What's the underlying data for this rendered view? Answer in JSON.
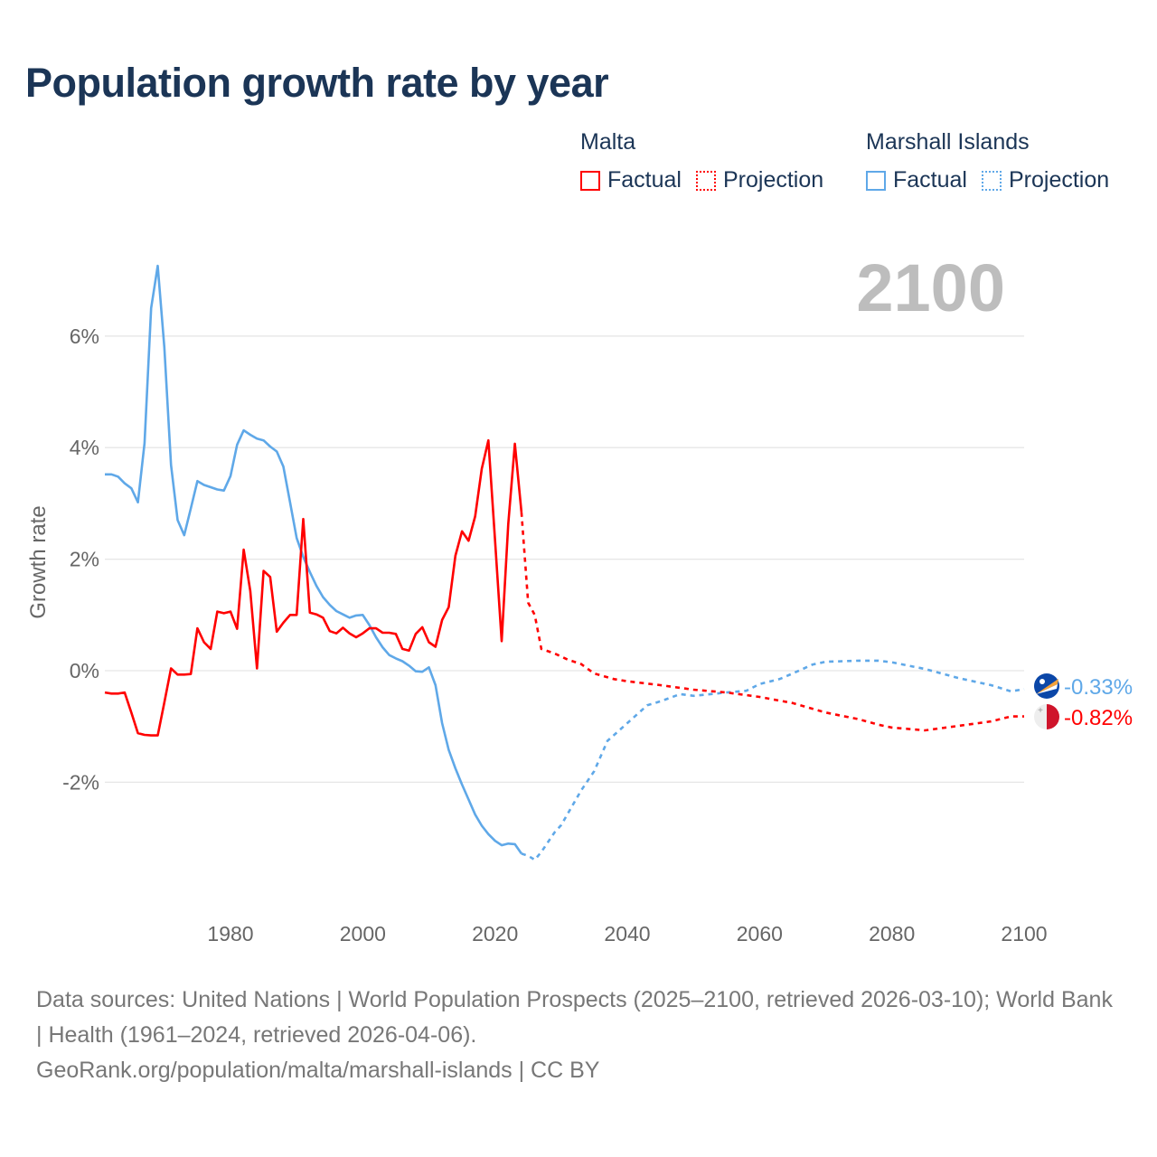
{
  "title": "Population growth rate by year",
  "current_year_label": "2100",
  "legend": {
    "groups": [
      {
        "name": "Malta",
        "factual": "Factual",
        "projection": "Projection",
        "color": "#ff0000"
      },
      {
        "name": "Marshall Islands",
        "factual": "Factual",
        "projection": "Projection",
        "color": "#5fa8e8"
      }
    ]
  },
  "footer": {
    "sources": "Data sources: United Nations | World Population Prospects (2025–2100, retrieved 2026-03-10); World Bank | Health (1961–2024, retrieved 2026-04-06).",
    "credit": "GeoRank.org/population/malta/marshall-islands | CC BY"
  },
  "chart_data": {
    "type": "line",
    "title": "Population growth rate by year",
    "xlabel": "",
    "ylabel": "Growth rate",
    "xlim": [
      1961,
      2100
    ],
    "ylim": [
      -4,
      7.5
    ],
    "x_ticks": [
      "1980",
      "2000",
      "2020",
      "2040",
      "2060",
      "2080",
      "2100"
    ],
    "x_tick_values": [
      1980,
      2000,
      2020,
      2040,
      2060,
      2080,
      2100
    ],
    "y_ticks": [
      "6%",
      "4%",
      "2%",
      "0%",
      "-2%"
    ],
    "y_tick_values": [
      6,
      4,
      2,
      0,
      -2
    ],
    "grid": true,
    "series": [
      {
        "name": "Malta",
        "color": "#ff0000",
        "end_label": "-0.82%",
        "flag": "malta-flag",
        "factual": [
          [
            1961,
            -0.39
          ],
          [
            1962,
            -0.41
          ],
          [
            1963,
            -0.41
          ],
          [
            1964,
            -0.39
          ],
          [
            1965,
            -0.75
          ],
          [
            1966,
            -1.12
          ],
          [
            1967,
            -1.15
          ],
          [
            1968,
            -1.16
          ],
          [
            1969,
            -1.16
          ],
          [
            1970,
            -0.57
          ],
          [
            1971,
            0.04
          ],
          [
            1972,
            -0.07
          ],
          [
            1973,
            -0.07
          ],
          [
            1974,
            -0.06
          ],
          [
            1975,
            0.76
          ],
          [
            1976,
            0.51
          ],
          [
            1977,
            0.39
          ],
          [
            1978,
            1.06
          ],
          [
            1979,
            1.03
          ],
          [
            1980,
            1.06
          ],
          [
            1981,
            0.75
          ],
          [
            1982,
            2.17
          ],
          [
            1983,
            1.43
          ],
          [
            1984,
            0.04
          ],
          [
            1985,
            1.79
          ],
          [
            1986,
            1.68
          ],
          [
            1987,
            0.7
          ],
          [
            1988,
            0.86
          ],
          [
            1989,
            1.0
          ],
          [
            1990,
            1.0
          ],
          [
            1991,
            2.72
          ],
          [
            1992,
            1.04
          ],
          [
            1993,
            1.01
          ],
          [
            1994,
            0.95
          ],
          [
            1995,
            0.71
          ],
          [
            1996,
            0.67
          ],
          [
            1997,
            0.77
          ],
          [
            1998,
            0.67
          ],
          [
            1999,
            0.6
          ],
          [
            2000,
            0.67
          ],
          [
            2001,
            0.76
          ],
          [
            2002,
            0.76
          ],
          [
            2003,
            0.68
          ],
          [
            2004,
            0.68
          ],
          [
            2005,
            0.66
          ],
          [
            2006,
            0.39
          ],
          [
            2007,
            0.36
          ],
          [
            2008,
            0.66
          ],
          [
            2009,
            0.78
          ],
          [
            2010,
            0.51
          ],
          [
            2011,
            0.43
          ],
          [
            2012,
            0.91
          ],
          [
            2013,
            1.14
          ],
          [
            2014,
            2.06
          ],
          [
            2015,
            2.5
          ],
          [
            2016,
            2.33
          ],
          [
            2017,
            2.77
          ],
          [
            2018,
            3.62
          ],
          [
            2019,
            4.13
          ],
          [
            2020,
            2.33
          ],
          [
            2021,
            0.53
          ],
          [
            2022,
            2.63
          ],
          [
            2023,
            4.07
          ],
          [
            2024,
            2.84
          ]
        ],
        "projection": [
          [
            2024,
            2.84
          ],
          [
            2025,
            1.22
          ],
          [
            2026,
            1.0
          ],
          [
            2027,
            0.39
          ],
          [
            2029,
            0.31
          ],
          [
            2031,
            0.2
          ],
          [
            2033,
            0.12
          ],
          [
            2035,
            -0.05
          ],
          [
            2038,
            -0.15
          ],
          [
            2040,
            -0.19
          ],
          [
            2045,
            -0.26
          ],
          [
            2050,
            -0.34
          ],
          [
            2055,
            -0.39
          ],
          [
            2060,
            -0.47
          ],
          [
            2065,
            -0.58
          ],
          [
            2070,
            -0.75
          ],
          [
            2075,
            -0.87
          ],
          [
            2078,
            -0.97
          ],
          [
            2080,
            -1.02
          ],
          [
            2085,
            -1.07
          ],
          [
            2090,
            -0.99
          ],
          [
            2095,
            -0.91
          ],
          [
            2098,
            -0.82
          ],
          [
            2100,
            -0.82
          ]
        ]
      },
      {
        "name": "Marshall Islands",
        "color": "#5fa8e8",
        "end_label": "-0.33%",
        "flag": "marshall-islands-flag",
        "factual": [
          [
            1961,
            3.52
          ],
          [
            1962,
            3.52
          ],
          [
            1963,
            3.48
          ],
          [
            1964,
            3.36
          ],
          [
            1965,
            3.27
          ],
          [
            1966,
            3.02
          ],
          [
            1967,
            4.08
          ],
          [
            1968,
            6.5
          ],
          [
            1969,
            7.26
          ],
          [
            1970,
            5.8
          ],
          [
            1971,
            3.69
          ],
          [
            1972,
            2.7
          ],
          [
            1973,
            2.43
          ],
          [
            1974,
            2.91
          ],
          [
            1975,
            3.4
          ],
          [
            1976,
            3.33
          ],
          [
            1977,
            3.29
          ],
          [
            1978,
            3.25
          ],
          [
            1979,
            3.23
          ],
          [
            1980,
            3.49
          ],
          [
            1981,
            4.05
          ],
          [
            1982,
            4.31
          ],
          [
            1983,
            4.23
          ],
          [
            1984,
            4.16
          ],
          [
            1985,
            4.13
          ],
          [
            1986,
            4.02
          ],
          [
            1987,
            3.93
          ],
          [
            1988,
            3.66
          ],
          [
            1989,
            3.02
          ],
          [
            1990,
            2.38
          ],
          [
            1991,
            2.04
          ],
          [
            1992,
            1.77
          ],
          [
            1993,
            1.52
          ],
          [
            1994,
            1.32
          ],
          [
            1995,
            1.18
          ],
          [
            1996,
            1.07
          ],
          [
            1997,
            1.01
          ],
          [
            1998,
            0.95
          ],
          [
            1999,
            0.99
          ],
          [
            2000,
            1.0
          ],
          [
            2001,
            0.82
          ],
          [
            2002,
            0.6
          ],
          [
            2003,
            0.42
          ],
          [
            2004,
            0.28
          ],
          [
            2005,
            0.22
          ],
          [
            2006,
            0.17
          ],
          [
            2007,
            0.09
          ],
          [
            2008,
            -0.01
          ],
          [
            2009,
            -0.02
          ],
          [
            2010,
            0.06
          ],
          [
            2011,
            -0.26
          ],
          [
            2012,
            -0.94
          ],
          [
            2013,
            -1.42
          ],
          [
            2014,
            -1.75
          ],
          [
            2015,
            -2.04
          ],
          [
            2016,
            -2.31
          ],
          [
            2017,
            -2.58
          ],
          [
            2018,
            -2.78
          ],
          [
            2019,
            -2.93
          ],
          [
            2020,
            -3.05
          ],
          [
            2021,
            -3.13
          ],
          [
            2022,
            -3.1
          ],
          [
            2023,
            -3.11
          ],
          [
            2024,
            -3.28
          ]
        ],
        "projection": [
          [
            2024,
            -3.28
          ],
          [
            2025,
            -3.32
          ],
          [
            2026,
            -3.39
          ],
          [
            2027,
            -3.25
          ],
          [
            2029,
            -2.9
          ],
          [
            2030,
            -2.77
          ],
          [
            2033,
            -2.15
          ],
          [
            2035,
            -1.8
          ],
          [
            2037,
            -1.26
          ],
          [
            2040,
            -0.94
          ],
          [
            2043,
            -0.62
          ],
          [
            2045,
            -0.55
          ],
          [
            2048,
            -0.42
          ],
          [
            2050,
            -0.45
          ],
          [
            2055,
            -0.39
          ],
          [
            2058,
            -0.36
          ],
          [
            2060,
            -0.24
          ],
          [
            2063,
            -0.15
          ],
          [
            2065,
            -0.05
          ],
          [
            2068,
            0.11
          ],
          [
            2070,
            0.16
          ],
          [
            2075,
            0.18
          ],
          [
            2078,
            0.18
          ],
          [
            2080,
            0.15
          ],
          [
            2085,
            0.03
          ],
          [
            2090,
            -0.13
          ],
          [
            2095,
            -0.26
          ],
          [
            2098,
            -0.37
          ],
          [
            2100,
            -0.33
          ]
        ]
      }
    ]
  }
}
